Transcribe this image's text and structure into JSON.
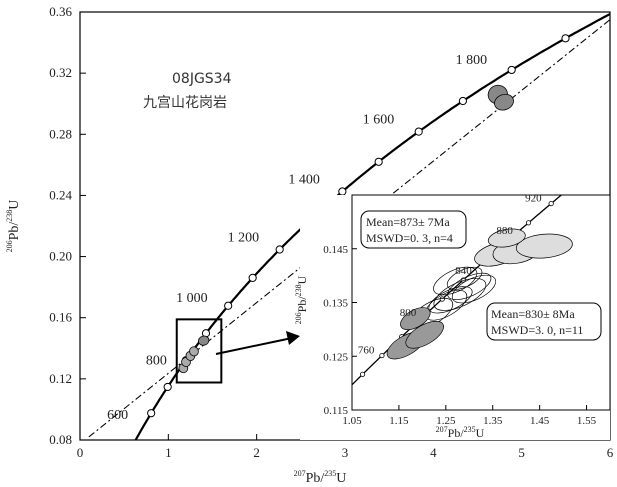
{
  "chart_data": [
    {
      "type": "scatter",
      "title": "",
      "annotation": {
        "sample_id": "08JGS34",
        "rock_name": "九宫山花岗岩"
      },
      "xlabel": {
        "pre": "207",
        "mid": "Pb/",
        "sup2": "235",
        "post": "U"
      },
      "ylabel": {
        "pre": "206",
        "mid": "Pb/",
        "sup2": "238",
        "post": "U"
      },
      "xlim": [
        0,
        6
      ],
      "ylim": [
        0.08,
        0.36
      ],
      "xticks": [
        0,
        1,
        2,
        3,
        4,
        5,
        6
      ],
      "xtick_labels": [
        "0",
        "1",
        "2",
        "3",
        "4",
        "5",
        "6"
      ],
      "yticks": [
        0.08,
        0.12,
        0.16,
        0.2,
        0.24,
        0.28,
        0.32,
        0.36
      ],
      "ytick_labels": [
        "0.08",
        "0.12",
        "0.16",
        "0.20",
        "0.24",
        "0.28",
        "0.32",
        "0.36"
      ],
      "concordia_ages_Ma": [
        600,
        700,
        800,
        900,
        1000,
        1100,
        1200,
        1300,
        1400,
        1500,
        1600,
        1700,
        1800,
        1900,
        2000
      ],
      "concordia_age_labels": [
        {
          "age": 600,
          "text": "600"
        },
        {
          "age": 800,
          "text": "800"
        },
        {
          "age": 1000,
          "text": "1 000"
        },
        {
          "age": 1200,
          "text": "1 200"
        },
        {
          "age": 1400,
          "text": "1 400"
        },
        {
          "age": 1600,
          "text": "1 600"
        },
        {
          "age": 1800,
          "text": "1 800"
        }
      ],
      "discordia_line": {
        "x": [
          0.1,
          6.0
        ],
        "y": [
          0.082,
          0.355
        ]
      },
      "ellipses": [
        {
          "x": 1.17,
          "y": 0.127,
          "rx": 0.05,
          "ry": 0.003,
          "rot": -25,
          "fill": "#aaaaaa"
        },
        {
          "x": 1.2,
          "y": 0.131,
          "rx": 0.05,
          "ry": 0.003,
          "rot": -25,
          "fill": "#aaaaaa"
        },
        {
          "x": 1.25,
          "y": 0.135,
          "rx": 0.05,
          "ry": 0.003,
          "rot": -25,
          "fill": "#aaaaaa"
        },
        {
          "x": 1.29,
          "y": 0.138,
          "rx": 0.05,
          "ry": 0.003,
          "rot": -25,
          "fill": "#aaaaaa"
        },
        {
          "x": 1.4,
          "y": 0.145,
          "rx": 0.06,
          "ry": 0.003,
          "rot": -15,
          "fill": "#888888"
        },
        {
          "x": 4.73,
          "y": 0.306,
          "rx": 0.11,
          "ry": 0.006,
          "rot": -20,
          "fill": "#888888"
        },
        {
          "x": 4.8,
          "y": 0.301,
          "rx": 0.11,
          "ry": 0.005,
          "rot": -20,
          "fill": "#888888"
        }
      ],
      "zoom_box": {
        "x": [
          1.05,
          1.6
        ],
        "y": [
          0.115,
          0.155
        ]
      }
    },
    {
      "type": "scatter",
      "title": "inset",
      "xlabel": {
        "pre": "207",
        "mid": "Pb/",
        "sup2": "235",
        "post": "U"
      },
      "ylabel": {
        "pre": "206",
        "mid": "Pb/",
        "sup2": "238",
        "post": "U"
      },
      "xlim": [
        1.05,
        1.6
      ],
      "ylim": [
        0.115,
        0.155
      ],
      "xticks": [
        1.05,
        1.15,
        1.25,
        1.35,
        1.45,
        1.55
      ],
      "xtick_labels": [
        "1.05",
        "1.15",
        "1.25",
        "1.35",
        "1.45",
        "1.55"
      ],
      "yticks": [
        0.115,
        0.125,
        0.135,
        0.145
      ],
      "ytick_labels": [
        "0.115",
        "0.125",
        "0.135",
        "0.145"
      ],
      "concordia_ages_Ma": [
        740,
        760,
        780,
        800,
        820,
        840,
        860,
        880,
        900,
        920,
        940
      ],
      "concordia_age_labels": [
        {
          "age": 760,
          "text": "760"
        },
        {
          "age": 800,
          "text": "800"
        },
        {
          "age": 840,
          "text": "840"
        },
        {
          "age": 880,
          "text": "880"
        },
        {
          "age": 920,
          "text": "920"
        }
      ],
      "ellipses_dark": [
        {
          "x": 1.165,
          "y": 0.127,
          "rx": 0.045,
          "ry": 0.0018,
          "rot": -30
        },
        {
          "x": 1.205,
          "y": 0.129,
          "rx": 0.045,
          "ry": 0.0018,
          "rot": -30
        },
        {
          "x": 1.185,
          "y": 0.132,
          "rx": 0.035,
          "ry": 0.0016,
          "rot": -30
        }
      ],
      "ellipses_open": [
        {
          "x": 1.22,
          "y": 0.133,
          "rx": 0.05,
          "ry": 0.002,
          "rot": -30
        },
        {
          "x": 1.25,
          "y": 0.1345,
          "rx": 0.05,
          "ry": 0.002,
          "rot": -30
        },
        {
          "x": 1.28,
          "y": 0.1365,
          "rx": 0.06,
          "ry": 0.0022,
          "rot": -25
        },
        {
          "x": 1.3,
          "y": 0.138,
          "rx": 0.05,
          "ry": 0.0018,
          "rot": -25
        },
        {
          "x": 1.27,
          "y": 0.139,
          "rx": 0.05,
          "ry": 0.002,
          "rot": -25
        },
        {
          "x": 1.29,
          "y": 0.1395,
          "rx": 0.04,
          "ry": 0.0016,
          "rot": -25
        },
        {
          "x": 1.31,
          "y": 0.1375,
          "rx": 0.05,
          "ry": 0.002,
          "rot": -25
        },
        {
          "x": 1.26,
          "y": 0.1355,
          "rx": 0.05,
          "ry": 0.0018,
          "rot": -25
        }
      ],
      "ellipses_light": [
        {
          "x": 1.36,
          "y": 0.144,
          "rx": 0.05,
          "ry": 0.002,
          "rot": -15
        },
        {
          "x": 1.4,
          "y": 0.1445,
          "rx": 0.05,
          "ry": 0.0022,
          "rot": -10
        },
        {
          "x": 1.46,
          "y": 0.1455,
          "rx": 0.06,
          "ry": 0.0022,
          "rot": -5
        },
        {
          "x": 1.38,
          "y": 0.147,
          "rx": 0.04,
          "ry": 0.0016,
          "rot": -10
        }
      ],
      "boxes": [
        {
          "line1": "Mean=873± 7Ma",
          "line2": "MSWD=0. 3, n=4"
        },
        {
          "line1": "Mean=830± 8Ma",
          "line2": "MSWD=3. 0, n=11"
        }
      ]
    }
  ]
}
